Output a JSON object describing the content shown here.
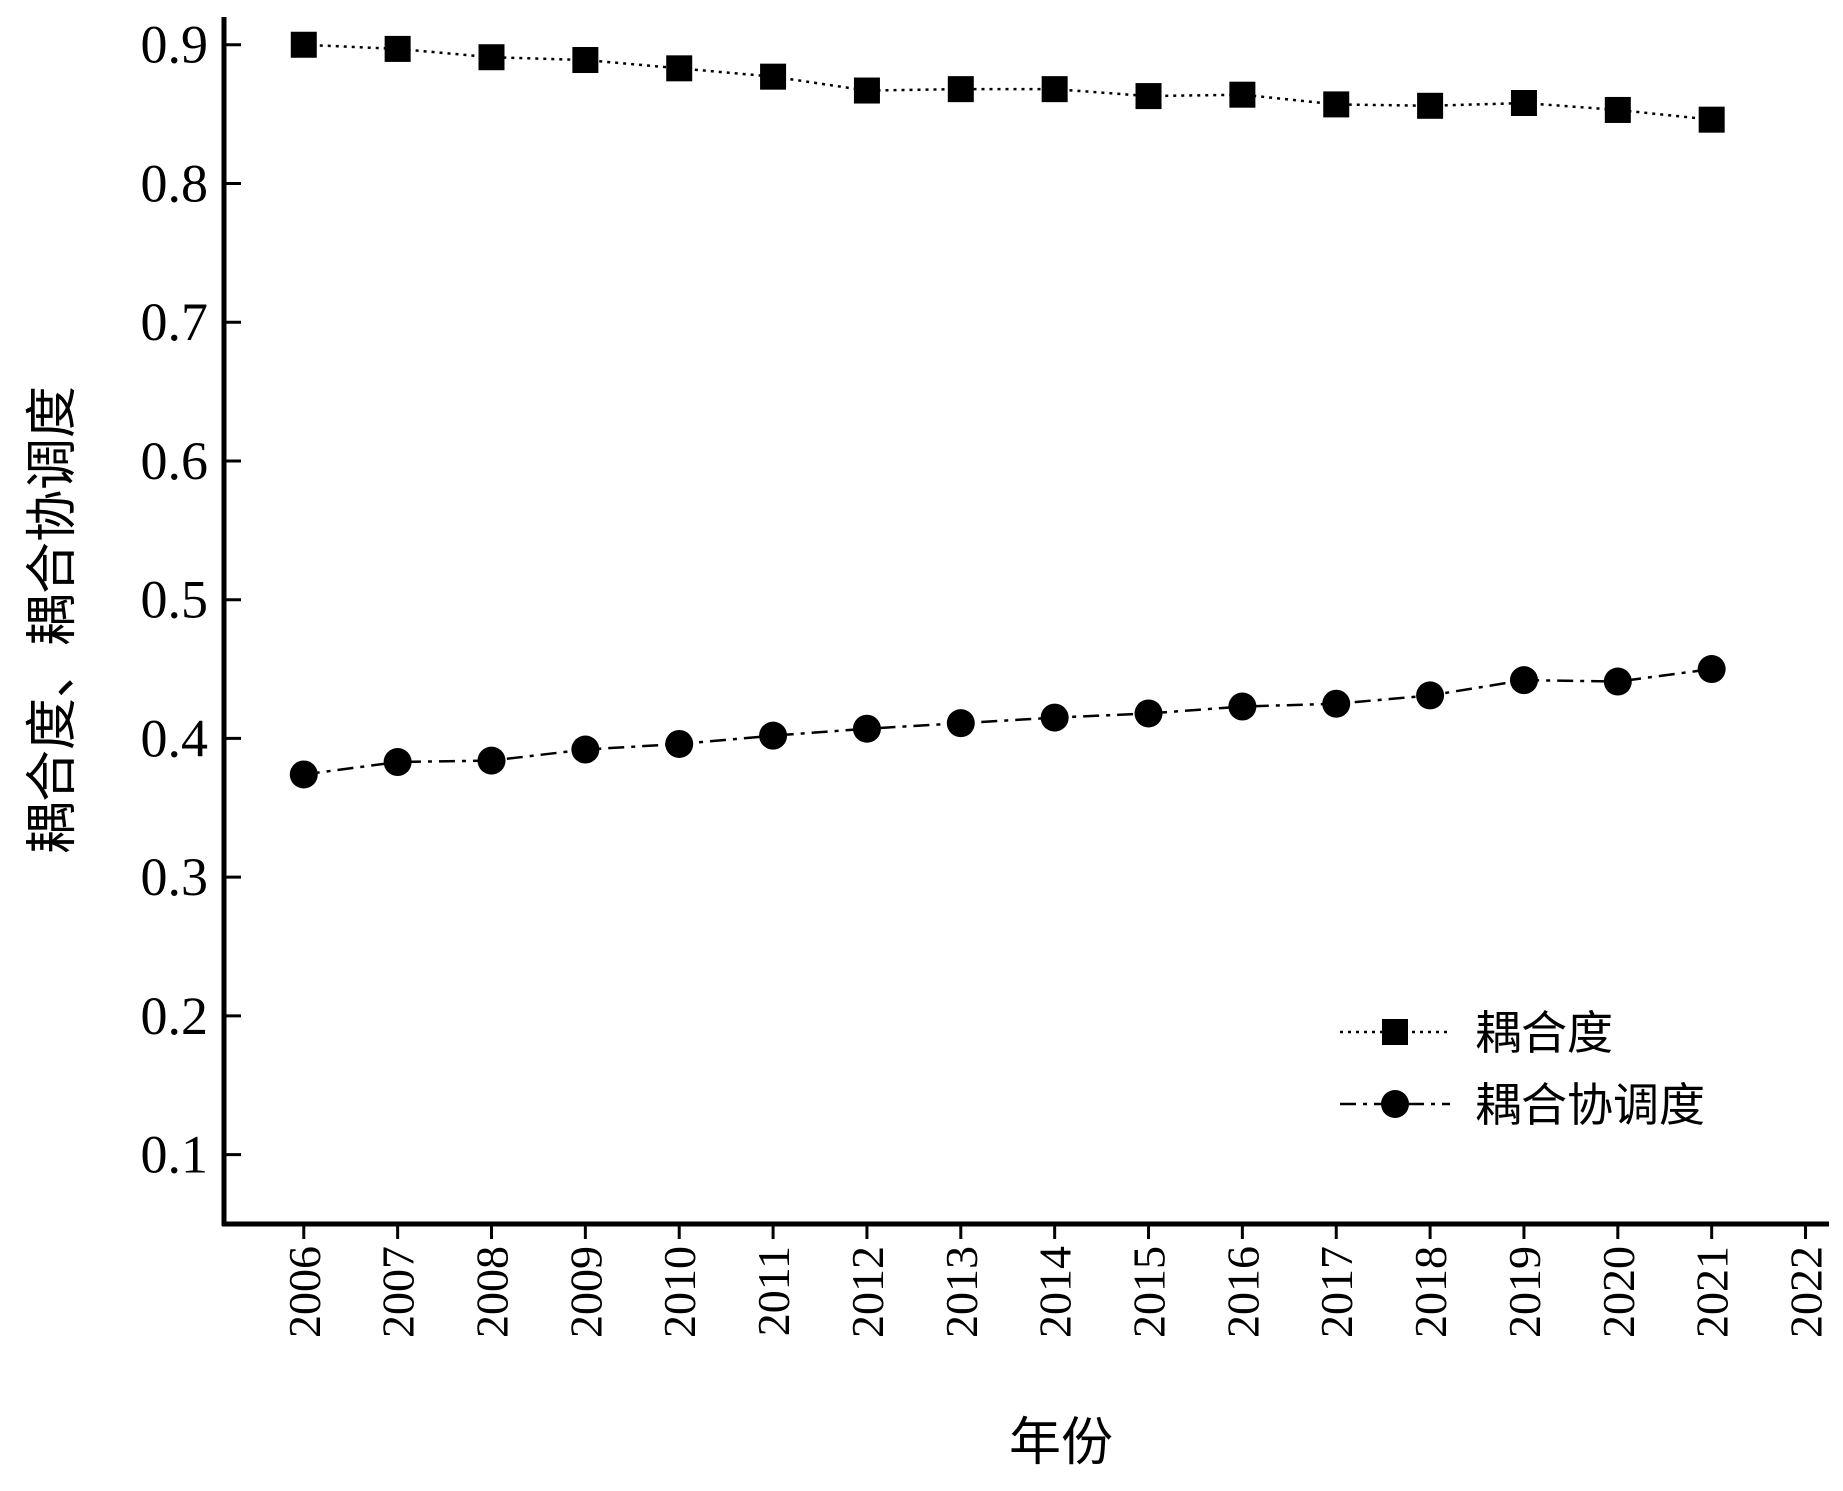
{
  "chart_data": {
    "type": "line",
    "x_label": "年份",
    "y_label": "耦合度、耦合协调度",
    "x": [
      2006,
      2007,
      2008,
      2009,
      2010,
      2011,
      2012,
      2013,
      2014,
      2015,
      2016,
      2017,
      2018,
      2019,
      2020,
      2021
    ],
    "series": [
      {
        "name": "耦合度",
        "color": "#000000",
        "marker": "square",
        "linestyle": "dotted",
        "values": [
          0.9,
          0.897,
          0.891,
          0.889,
          0.883,
          0.877,
          0.867,
          0.868,
          0.868,
          0.863,
          0.864,
          0.857,
          0.856,
          0.858,
          0.853,
          0.846
        ]
      },
      {
        "name": "耦合协调度",
        "color": "#000000",
        "marker": "circle",
        "linestyle": "dashdot",
        "values": [
          0.374,
          0.383,
          0.384,
          0.392,
          0.396,
          0.402,
          0.407,
          0.411,
          0.415,
          0.418,
          0.423,
          0.425,
          0.431,
          0.442,
          0.441,
          0.45
        ]
      }
    ],
    "xlim": [
      2005.15,
      2022.25
    ],
    "xticks": [
      2006,
      2007,
      2008,
      2009,
      2010,
      2011,
      2012,
      2013,
      2014,
      2015,
      2016,
      2017,
      2018,
      2019,
      2020,
      2021,
      2022
    ],
    "ylim": [
      0.05,
      0.92
    ],
    "yticks": [
      0.1,
      0.2,
      0.3,
      0.4,
      0.5,
      0.6,
      0.7,
      0.8,
      0.9
    ],
    "grid": false,
    "legend": "lower right"
  }
}
